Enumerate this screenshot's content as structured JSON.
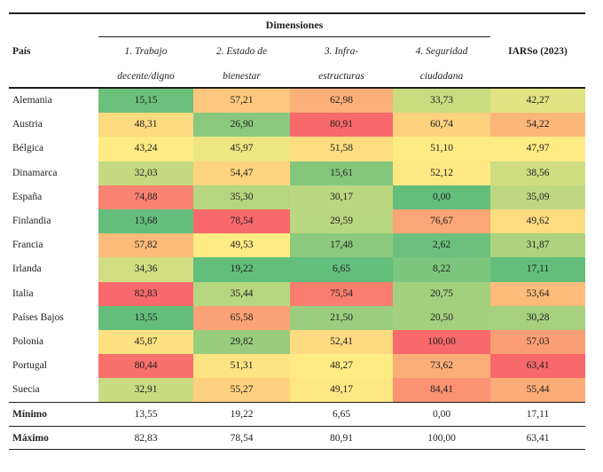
{
  "chart_data": {
    "type": "table",
    "group_header": "Dimensiones",
    "country_column_header": "País",
    "index_column_header": "IARSo (2023)",
    "dimension_headers": [
      [
        "1. Trabajo",
        "decente/digno"
      ],
      [
        "2. Estado de",
        "bienestar"
      ],
      [
        "3. Infra-",
        "estructuras"
      ],
      [
        "4. Seguridad",
        "ciudadana"
      ]
    ],
    "columns_full": [
      "1. Trabajo decente/digno",
      "2. Estado de bienestar",
      "3. Infra-estructuras",
      "4. Seguridad ciudadana",
      "IARSo (2023)"
    ],
    "colorscale": {
      "low_color": "#63BE7B",
      "mid_color": "#FFEB84",
      "high_color": "#F8696B"
    },
    "rows": [
      {
        "country": "Alemania",
        "values": [
          15.15,
          57.21,
          62.98,
          33.73,
          42.27
        ],
        "colors": [
          "#6BC07B",
          "#FDC87D",
          "#FCB079",
          "#CADB80",
          "#E2E382"
        ]
      },
      {
        "country": "Austria",
        "values": [
          48.31,
          26.9,
          80.91,
          60.74,
          54.22
        ],
        "colors": [
          "#FEDA80",
          "#8AC97D",
          "#F8696B",
          "#FED17F",
          "#FCB679"
        ]
      },
      {
        "country": "Bélgica",
        "values": [
          43.24,
          45.97,
          51.58,
          51.1,
          47.97
        ],
        "colors": [
          "#FFEB84",
          "#EDE683",
          "#FEDD81",
          "#FFEB84",
          "#FFEB84"
        ]
      },
      {
        "country": "Dinamarca",
        "values": [
          32.03,
          54.47,
          15.61,
          52.12,
          38.56
        ],
        "colors": [
          "#C4DA81",
          "#FED480",
          "#84C77C",
          "#FFE883",
          "#CFDD81"
        ]
      },
      {
        "country": "España",
        "values": [
          74.88,
          35.3,
          30.17,
          0.0,
          35.09
        ],
        "colors": [
          "#F98370",
          "#B5D57F",
          "#BBD780",
          "#63BE7B",
          "#BDD880"
        ]
      },
      {
        "country": "Finlandia",
        "values": [
          13.68,
          78.54,
          29.59,
          76.67,
          49.62
        ],
        "colors": [
          "#64BE7B",
          "#F8696B",
          "#B9D680",
          "#FBA676",
          "#FEDD81"
        ]
      },
      {
        "country": "Francia",
        "values": [
          57.82,
          49.53,
          17.48,
          2.62,
          31.87
        ],
        "colors": [
          "#FCBB7A",
          "#FFEB84",
          "#8BC97D",
          "#6BC07B",
          "#ADD37F"
        ]
      },
      {
        "country": "Irlanda",
        "values": [
          34.36,
          19.22,
          6.65,
          8.22,
          17.11
        ],
        "colors": [
          "#D0DD81",
          "#63BE7B",
          "#63BE7B",
          "#7CC57C",
          "#63BE7B"
        ]
      },
      {
        "country": "Italia",
        "values": [
          82.83,
          35.44,
          75.54,
          20.75,
          53.64
        ],
        "colors": [
          "#F8696B",
          "#B6D680",
          "#F97E6F",
          "#A2D07F",
          "#FCBB7A"
        ]
      },
      {
        "country": "Países Bajos",
        "values": [
          13.55,
          65.58,
          21.5,
          20.5,
          30.28
        ],
        "colors": [
          "#63BE7B",
          "#FBA376",
          "#9ACE7E",
          "#A2D07F",
          "#A5D17E"
        ]
      },
      {
        "country": "Polonia",
        "values": [
          45.87,
          29.82,
          52.41,
          100.0,
          57.03
        ],
        "colors": [
          "#FEE282",
          "#99CD7E",
          "#FEDA80",
          "#F8696B",
          "#FA9E75"
        ]
      },
      {
        "country": "Portugal",
        "values": [
          80.44,
          51.31,
          48.27,
          73.62,
          63.41
        ],
        "colors": [
          "#F8706C",
          "#FEE382",
          "#FFEB84",
          "#FBAF78",
          "#F8696B"
        ]
      },
      {
        "country": "Suecia",
        "values": [
          32.91,
          55.27,
          49.17,
          84.41,
          55.44
        ],
        "colors": [
          "#C9DB81",
          "#FDD17F",
          "#FFE783",
          "#FA9273",
          "#FBAC77"
        ]
      }
    ],
    "summary_rows": [
      {
        "label": "Mínimo",
        "values": [
          13.55,
          19.22,
          6.65,
          0.0,
          17.11
        ]
      },
      {
        "label": "Máximo",
        "values": [
          82.83,
          78.54,
          80.91,
          100.0,
          63.41
        ]
      }
    ]
  }
}
